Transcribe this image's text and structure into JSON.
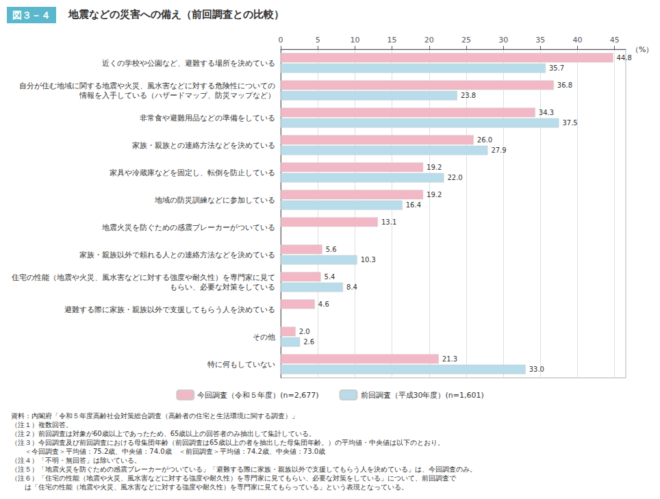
{
  "chart_data": {
    "type": "bar",
    "orientation": "horizontal",
    "figure_label": "図３－４",
    "title": "地震などの災害への備え（前回調査との比較）",
    "categories": [
      "近くの学校や公園など、避難する場所を決めている",
      "自分が住む地域に関する地震や火災、風水害などに対する危険性についての\n情報を入手している（ハザードマップ、防災マップなど）",
      "非常食や避難用品などの準備をしている",
      "家族・親族との連絡方法などを決めている",
      "家具や冷蔵庫などを固定し、転倒を防止している",
      "地域の防災訓練などに参加している",
      "地震火災を防ぐための感震ブレーカーがついている",
      "家族・親族以外で頼れる人との連絡方法などを決めている",
      "住宅の性能（地震や火災、風水害などに対する強度や耐久性）を専門家に見て\nもらい、必要な対策をしている",
      "避難する際に家族・親族以外で支援してもらう人を決めている",
      "その他",
      "特に何もしていない"
    ],
    "series": [
      {
        "name": "今回調査（令和５年度）(n=2,677)",
        "color": "#f2b8c6",
        "values": [
          44.8,
          36.8,
          34.3,
          26.0,
          19.2,
          19.2,
          13.1,
          5.6,
          5.4,
          4.6,
          2.0,
          21.3
        ],
        "value_labels": [
          "44.8",
          "36.8",
          "34.3",
          "26.0",
          "19.2",
          "19.2",
          "13.1",
          "5.6",
          "5.4",
          "4.6",
          "2.0",
          "21.3"
        ]
      },
      {
        "name": "前回調査（平成30年度）(n=1,601)",
        "color": "#b8dcea",
        "values": [
          35.7,
          23.8,
          37.5,
          27.9,
          22.0,
          16.4,
          null,
          10.3,
          8.4,
          null,
          2.6,
          33.0
        ],
        "value_labels": [
          "35.7",
          "23.8",
          "37.5",
          "27.9",
          "22.0",
          "16.4",
          null,
          "10.3",
          "8.4",
          null,
          "2.6",
          "33.0"
        ]
      }
    ],
    "xlabel": "（%）",
    "xlim": [
      0,
      46.5
    ],
    "xticks": [
      0,
      5,
      10,
      15,
      20,
      25,
      30,
      35,
      40,
      45
    ],
    "grid": true,
    "data_labels": true,
    "legend": "bottom",
    "notes": [
      "資料：内閣府「令和５年度高齢社会対策総合調査（高齢者の住宅と生活環境に関する調査）」",
      "（注１）複数回答。",
      "（注２）前回調査は対象が60歳以上であったため、65歳以上の回答者のみ抽出して集計している。",
      "（注３）今回調査及び前回調査における母集団年齢（前回調査は65歳以上の者を抽出した母集団年齢。）の平均値・中央値は以下のとおり。",
      "　　＜今回調査＞平均値：75.2歳、中央値：74.0歳　＜前回調査＞平均値：74.2歳、中央値：73.0歳",
      "（注４）「不明・無回答」は除いている。",
      "（注５）「地震火災を防ぐための感震ブレーカーがついている」「避難する際に家族・親族以外で支援してもらう人を決めている」は、今回調査のみ。",
      "（注６）「住宅の性能（地震や火災、風水害などに対する強度や耐久性）を専門家に見てもらい、必要な対策をしている」について、前回調査で",
      "　　は「住宅の性能（地震や火災、風水害などに対する強度や耐久性）を専門家に見てもらっている」という表現となっている。"
    ]
  }
}
